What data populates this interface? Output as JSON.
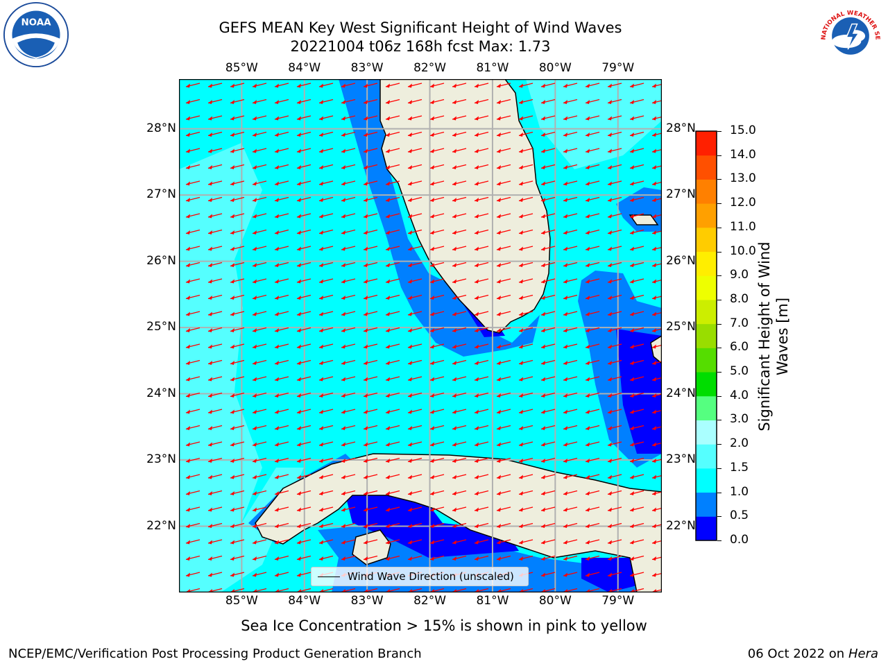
{
  "title": {
    "line1": "GEFS MEAN Key West Significant Height of Wind Waves",
    "line2": "20221004 t06z 168h fcst   Max: 1.73"
  },
  "axes": {
    "lon_ticks": [
      "85°W",
      "84°W",
      "83°W",
      "82°W",
      "81°W",
      "80°W",
      "79°W"
    ],
    "lon_values": [
      -85,
      -84,
      -83,
      -82,
      -81,
      -80,
      -79
    ],
    "lat_ticks": [
      "28°N",
      "27°N",
      "26°N",
      "25°N",
      "24°N",
      "23°N",
      "22°N"
    ],
    "lat_values": [
      28,
      27,
      26,
      25,
      24,
      23,
      22
    ],
    "lon_range": [
      -86,
      -78.3
    ],
    "lat_range": [
      21,
      28.75
    ],
    "grid": true
  },
  "colorbar": {
    "label": "Significant Height of Wind Waves [m]",
    "ticks": [
      "15.0",
      "14.0",
      "13.0",
      "12.0",
      "11.0",
      "10.0",
      "9.0",
      "8.0",
      "7.0",
      "6.0",
      "5.0",
      "4.0",
      "3.0",
      "2.0",
      "1.5",
      "1.0",
      "0.5",
      "0.0"
    ],
    "levels": [
      0,
      0.5,
      1,
      1.5,
      2,
      3,
      4,
      5,
      6,
      7,
      8,
      9,
      10,
      11,
      12,
      13,
      14,
      15
    ],
    "colors": [
      "#0000ff",
      "#0080ff",
      "#00ffff",
      "#55ffff",
      "#aaffff",
      "#55ff80",
      "#00dd00",
      "#55dd00",
      "#99dd00",
      "#ccee00",
      "#eeff00",
      "#ffee00",
      "#ffcc00",
      "#ffa000",
      "#ff8000",
      "#ff5000",
      "#ff2000"
    ]
  },
  "legend": {
    "label": "Wind Wave Direction (unscaled)"
  },
  "note": "Sea Ice Concentration > 15% is shown in pink to yellow",
  "footer": {
    "left": "NCEP/EMC/Verification Post Processing Product Generation Branch",
    "date": "06 Oct 2022 on ",
    "machine": "Hera"
  },
  "logos": {
    "noaa_text": "NOAA",
    "nws_text": "NATIONAL WEATHER SERVICE"
  },
  "map_data": {
    "wind_direction": "from east-northeast, arrows pointing west-southwest",
    "max_wave_height_m": 1.73,
    "colors": {
      "land": "#eeeedd",
      "ocean_high": "#55ffff",
      "ocean_mid": "#00ffff",
      "ocean_low": "#0080ff",
      "ocean_lowest": "#0000ff",
      "arrow": "#ff0000",
      "grid": "#b0b0b0"
    }
  }
}
